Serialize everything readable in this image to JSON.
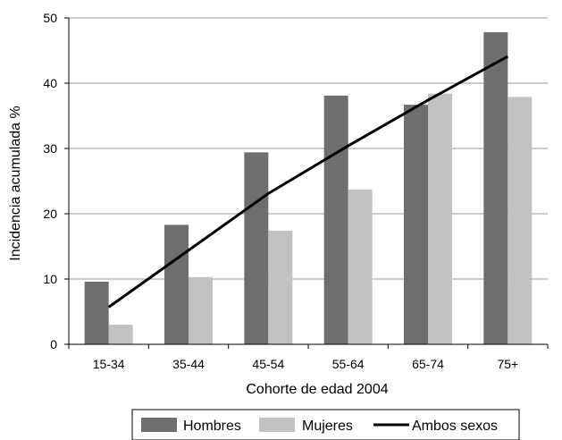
{
  "chart_data": {
    "type": "bar",
    "title": "",
    "xlabel": "Cohorte de edad 2004",
    "ylabel": "Incidencia acumulada %",
    "ylim": [
      0,
      50
    ],
    "yticks": [
      "0",
      "10",
      "20",
      "30",
      "40",
      "50"
    ],
    "categories": [
      "15-34",
      "35-44",
      "45-54",
      "55-64",
      "65-74",
      "75+"
    ],
    "grid": "horizontal",
    "legend_position": "bottom",
    "series": [
      {
        "name": "Hombres",
        "type": "bar",
        "color": "#6e6e6e",
        "values": [
          9.6,
          18.3,
          29.4,
          38.1,
          36.7,
          47.8
        ]
      },
      {
        "name": "Mujeres",
        "type": "bar",
        "color": "#c2c2c2",
        "values": [
          3.0,
          10.3,
          17.4,
          23.7,
          38.4,
          37.9
        ]
      },
      {
        "name": "Ambos sexos",
        "type": "line",
        "color": "#000000",
        "values": [
          5.7,
          14.4,
          23.1,
          30.4,
          37.4,
          44.1
        ]
      }
    ]
  }
}
